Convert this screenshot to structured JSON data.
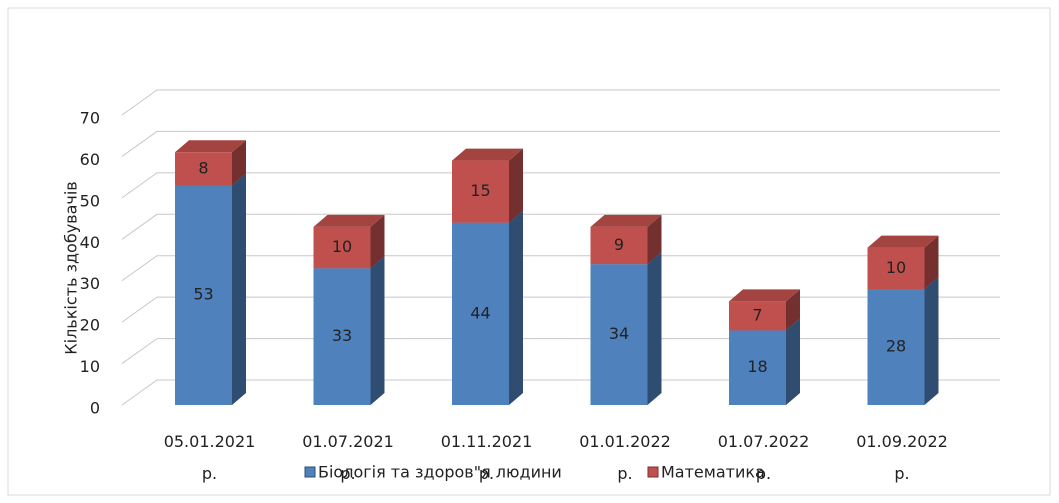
{
  "chart_data": {
    "type": "bar3d_stacked",
    "y_label": "Кількість здобувачів",
    "categories": [
      "05.01.2021 р.",
      "01.07.2021 р.",
      "01.11.2021 р.",
      "01.01.2022 р.",
      "01.07.2022 р.",
      "01.09.2022 р."
    ],
    "series": [
      {
        "name": "Біологія та здоров\"я людини",
        "color": "#4f81bd",
        "values": [
          53,
          33,
          44,
          34,
          18,
          28
        ]
      },
      {
        "name": "Математика",
        "color": "#c0504d",
        "values": [
          8,
          10,
          15,
          9,
          7,
          10
        ]
      }
    ],
    "ylim": [
      0,
      70
    ],
    "yticks": [
      0,
      10,
      20,
      30,
      40,
      50,
      60,
      70
    ],
    "grid": true,
    "legend": "bottom"
  }
}
